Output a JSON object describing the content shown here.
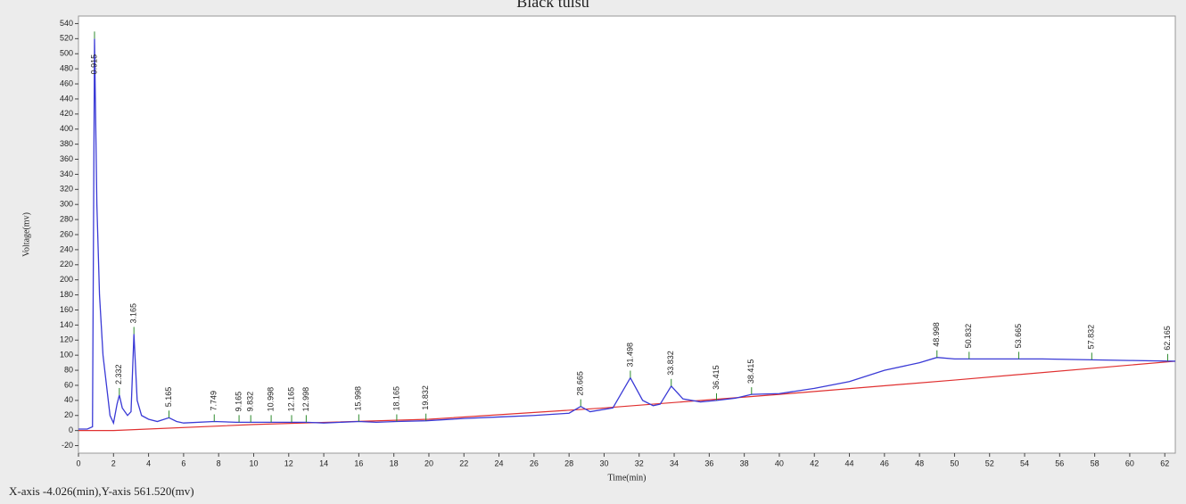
{
  "chart_data": {
    "type": "line",
    "title": "Black tulsu",
    "x_label": "Time(min)",
    "y_label": "Voltage(mv)",
    "status_text": "X-axis -4.026(min),Y-axis 561.520(mv)",
    "xlim": [
      0,
      62.6
    ],
    "ylim": [
      -30,
      550
    ],
    "xticks": [
      0,
      2,
      4,
      6,
      8,
      10,
      12,
      14,
      16,
      18,
      20,
      22,
      24,
      26,
      28,
      30,
      32,
      34,
      36,
      38,
      40,
      42,
      44,
      46,
      48,
      50,
      52,
      54,
      56,
      58,
      60,
      62
    ],
    "yticks": [
      -20,
      0,
      20,
      40,
      60,
      80,
      100,
      120,
      140,
      160,
      180,
      200,
      220,
      240,
      260,
      280,
      300,
      320,
      340,
      360,
      380,
      400,
      420,
      440,
      460,
      480,
      500,
      520,
      540
    ],
    "signal": {
      "color": "#3a3ad6",
      "x": [
        0,
        0.5,
        0.8,
        0.915,
        1.05,
        1.2,
        1.4,
        1.6,
        1.8,
        2.0,
        2.2,
        2.332,
        2.5,
        2.8,
        3.0,
        3.165,
        3.35,
        3.6,
        4.0,
        4.5,
        5.165,
        5.6,
        6,
        7.749,
        9,
        10,
        12,
        13,
        14,
        15.998,
        17,
        18.165,
        19.832,
        22,
        24,
        26,
        28,
        28.665,
        29.2,
        30.5,
        31.498,
        32.2,
        32.8,
        33.2,
        33.832,
        34.5,
        35.5,
        36.415,
        37.5,
        38.415,
        40,
        42,
        44,
        46,
        48,
        48.998,
        50,
        55,
        60,
        62.6
      ],
      "y": [
        2,
        2,
        5,
        520,
        300,
        180,
        100,
        60,
        20,
        10,
        35,
        47,
        30,
        20,
        25,
        128,
        40,
        20,
        15,
        12,
        17,
        12,
        10,
        12,
        11,
        11,
        11,
        11,
        10,
        12,
        11,
        12,
        13,
        16,
        18,
        20,
        23,
        32,
        25,
        30,
        70,
        40,
        33,
        35,
        59,
        42,
        38,
        40,
        43,
        48,
        49,
        56,
        65,
        80,
        90,
        97,
        95,
        95,
        93,
        92
      ]
    },
    "baseline": {
      "color": "#e03030",
      "x": [
        0,
        2,
        10,
        20,
        30,
        40,
        50,
        62.6
      ],
      "y": [
        0,
        0,
        8,
        15,
        30,
        48,
        67,
        92
      ]
    },
    "peak_color": "#2e8b2e",
    "peak_labels": [
      0.915,
      2.332,
      3.165,
      5.165,
      7.749,
      9.165,
      9.832,
      10.998,
      12.165,
      12.998,
      15.998,
      18.165,
      19.832,
      28.665,
      31.498,
      33.832,
      36.415,
      38.415,
      48.998,
      50.832,
      53.665,
      57.832,
      62.165
    ]
  }
}
